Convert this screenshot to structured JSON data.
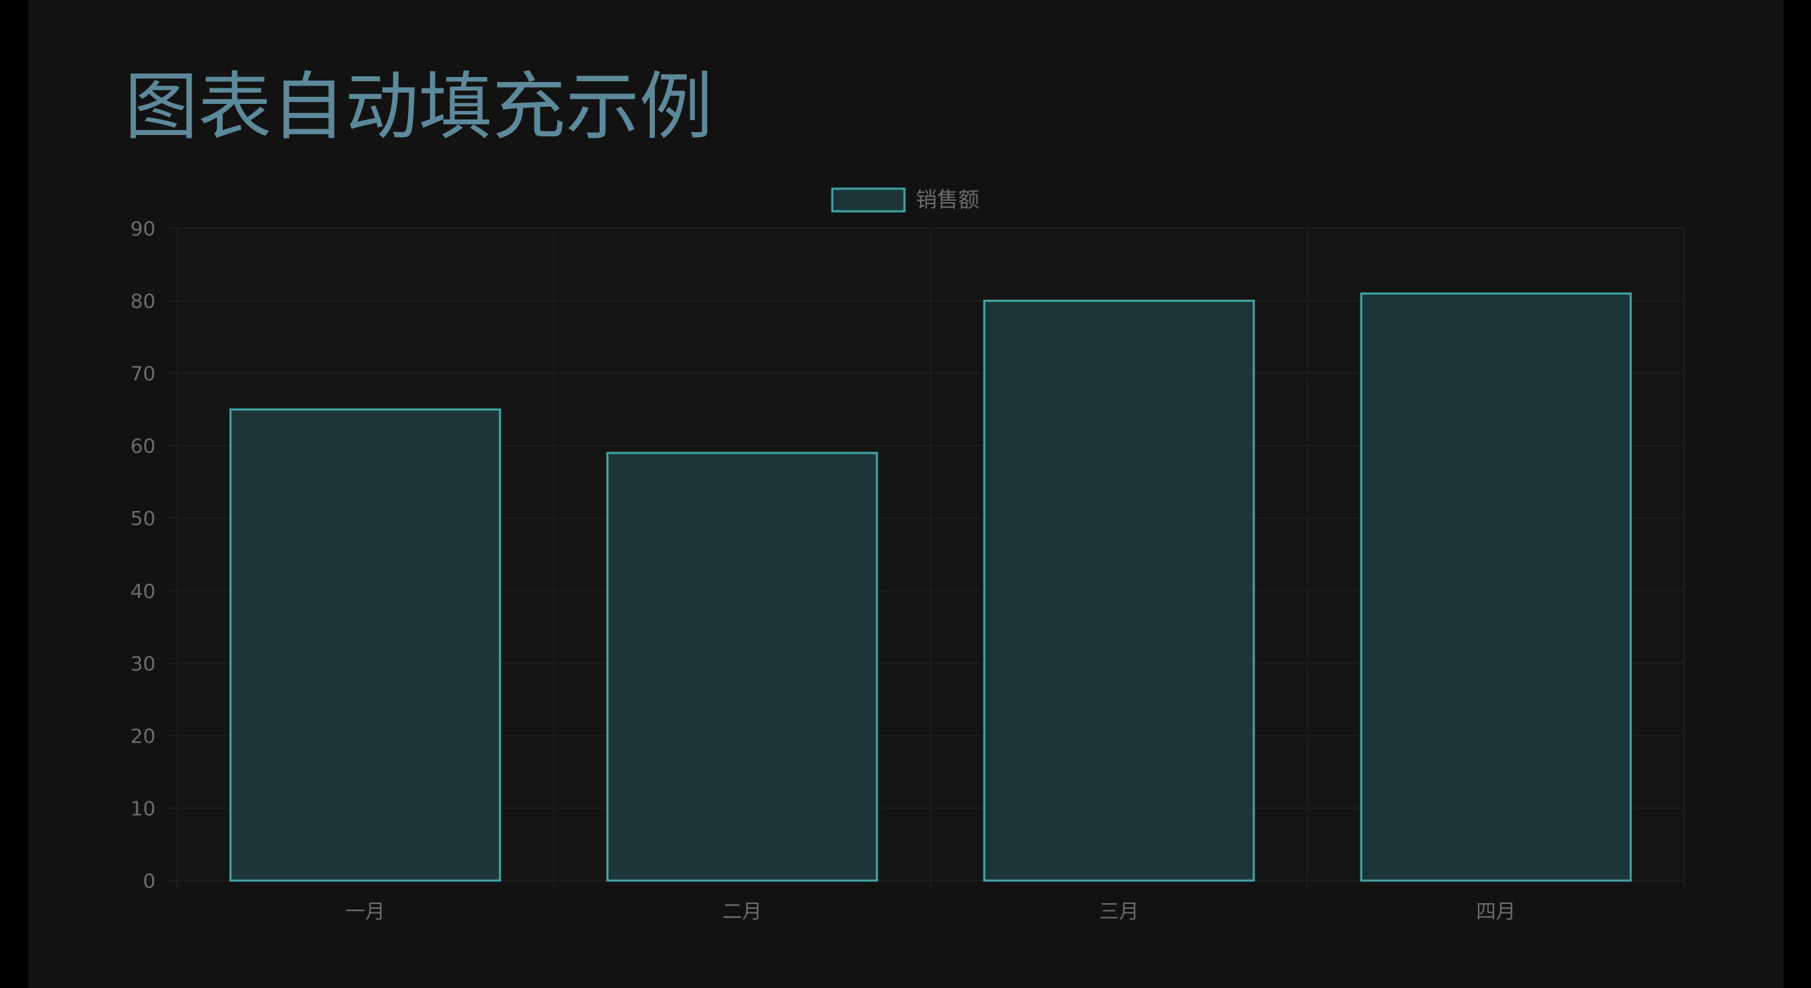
{
  "page": {
    "title": "图表自动填充示例"
  },
  "colors": {
    "background": "#121212",
    "title": "#5d8a9a",
    "bar_fill": "#1e3537",
    "bar_border": "#3fa5a5",
    "grid": "#1d1d1d",
    "tick_text": "#6c6c6c"
  },
  "chart_data": {
    "type": "bar",
    "categories": [
      "一月",
      "二月",
      "三月",
      "四月"
    ],
    "series": [
      {
        "name": "销售额",
        "values": [
          65,
          59,
          80,
          81
        ]
      }
    ],
    "ylim": [
      0,
      90
    ],
    "yticks": [
      0,
      10,
      20,
      30,
      40,
      50,
      60,
      70,
      80,
      90
    ],
    "grid": true,
    "legend": "top-center"
  }
}
